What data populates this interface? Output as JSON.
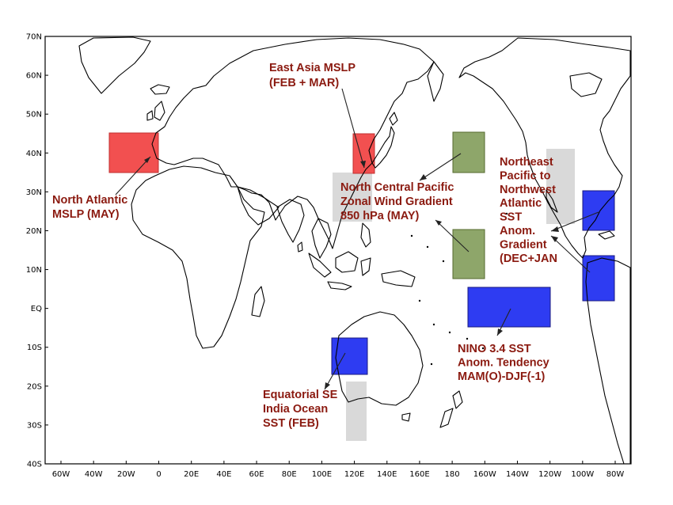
{
  "map": {
    "lat_labels": [
      "70N",
      "60N",
      "50N",
      "40N",
      "30N",
      "20N",
      "10N",
      "EQ",
      "10S",
      "20S",
      "30S",
      "40S"
    ],
    "lon_labels": [
      "60W",
      "40W",
      "20W",
      "0",
      "20E",
      "40E",
      "60E",
      "80E",
      "100E",
      "120E",
      "140E",
      "160E",
      "180",
      "160W",
      "140W",
      "120W",
      "100W",
      "80W"
    ],
    "colors": {
      "red_region": "#f25050",
      "blue_region": "#2e3cf2",
      "green_region": "#8ea66a",
      "gray_region": "#d9d9d9",
      "label_text": "#8b1a10"
    },
    "regions": [
      {
        "name": "north-atlantic-mslp-box",
        "color": "red"
      },
      {
        "name": "east-asia-mslp-box",
        "color": "red"
      },
      {
        "name": "north-central-pacific-north-box",
        "color": "green"
      },
      {
        "name": "north-central-pacific-south-box",
        "color": "green"
      },
      {
        "name": "nino34-box",
        "color": "blue"
      },
      {
        "name": "equatorial-se-indian-ocean-box",
        "color": "blue"
      },
      {
        "name": "northeast-pacific-north-box",
        "color": "blue"
      },
      {
        "name": "northeast-pacific-south-box",
        "color": "blue"
      }
    ],
    "labels": [
      {
        "name": "label-north-atlantic",
        "lines": [
          "North Atlantic",
          "MSLP (MAY)"
        ]
      },
      {
        "name": "label-east-asia",
        "lines": [
          "East Asia MSLP",
          "(FEB + MAR)"
        ]
      },
      {
        "name": "label-north-central-pacific",
        "lines": [
          "North Central Pacific",
          "Zonal Wind Gradient",
          "850 hPa (MAY)"
        ]
      },
      {
        "name": "label-northeast-pacific",
        "lines": [
          "Northeast",
          "Pacific to",
          "Northwest",
          "Atlantic",
          "SST",
          "Anom.",
          "Gradient",
          "(DEC+JAN"
        ]
      },
      {
        "name": "label-nino34",
        "lines": [
          "NINO 3.4 SST",
          "Anom. Tendency",
          "MAM(O)-DJF(-1)"
        ]
      },
      {
        "name": "label-equatorial-se-india",
        "lines": [
          "Equatorial SE",
          "India Ocean",
          "SST  (FEB)"
        ]
      }
    ]
  }
}
